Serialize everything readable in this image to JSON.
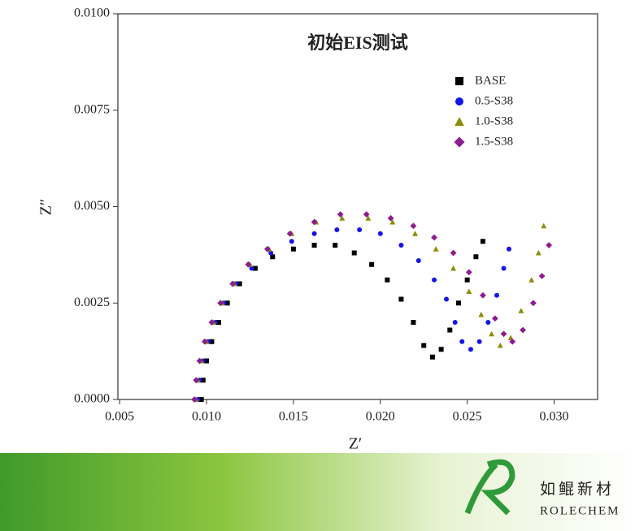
{
  "chart_data": {
    "type": "scatter",
    "title": "初始EIS测试",
    "x_label": "Z′",
    "y_label": "Z″",
    "xlim": [
      0.0049,
      0.0325
    ],
    "ylim": [
      0,
      0.01
    ],
    "xticks": [
      0.005,
      {
        "value": 0.01,
        "label": "0.010"
      },
      0.015,
      {
        "value": 0.02,
        "label": "0.020"
      },
      0.025,
      {
        "value": 0.03,
        "label": "0.030"
      }
    ],
    "yticks": [
      {
        "value": 0,
        "label": "0.0000"
      },
      0.0025,
      {
        "value": 0.005,
        "label": "0.0050"
      },
      0.0075,
      {
        "value": 0.01,
        "label": "0.0100"
      }
    ],
    "legend": "upper-right",
    "series": [
      {
        "name": "BASE",
        "color": "#000000",
        "marker": "square",
        "x": [
          0.0097,
          0.0098,
          0.01,
          0.0103,
          0.0107,
          0.0112,
          0.0119,
          0.0128,
          0.0138,
          0.015,
          0.0162,
          0.0174,
          0.0185,
          0.0195,
          0.0204,
          0.0212,
          0.0219,
          0.0225,
          0.023,
          0.0235,
          0.024,
          0.0245,
          0.025,
          0.0255,
          0.0259
        ],
        "values": [
          0.0,
          0.0005,
          0.001,
          0.0015,
          0.002,
          0.0025,
          0.003,
          0.0034,
          0.0037,
          0.0039,
          0.004,
          0.004,
          0.0038,
          0.0035,
          0.0031,
          0.0026,
          0.002,
          0.0014,
          0.0011,
          0.0013,
          0.0018,
          0.0025,
          0.0031,
          0.0037,
          0.0041
        ]
      },
      {
        "name": "0.5-S38",
        "color": "#1414e6",
        "marker": "circle",
        "x": [
          0.0095,
          0.0096,
          0.0098,
          0.0101,
          0.0105,
          0.011,
          0.0117,
          0.0126,
          0.0137,
          0.0149,
          0.0162,
          0.0175,
          0.0188,
          0.02,
          0.0212,
          0.0222,
          0.0231,
          0.0238,
          0.0243,
          0.0247,
          0.0252,
          0.0257,
          0.0262,
          0.0267,
          0.0271,
          0.0274
        ],
        "values": [
          0.0,
          0.0005,
          0.001,
          0.0015,
          0.002,
          0.0025,
          0.003,
          0.0034,
          0.0038,
          0.0041,
          0.0043,
          0.0044,
          0.0044,
          0.0043,
          0.004,
          0.0036,
          0.0031,
          0.0026,
          0.002,
          0.0015,
          0.0013,
          0.0015,
          0.002,
          0.0027,
          0.0034,
          0.0039
        ]
      },
      {
        "name": "1.0-S38",
        "color": "#8c8c0a",
        "marker": "triangle",
        "x": [
          0.0094,
          0.0095,
          0.0097,
          0.01,
          0.0104,
          0.0109,
          0.0116,
          0.0125,
          0.0136,
          0.0149,
          0.0163,
          0.0178,
          0.0193,
          0.0207,
          0.022,
          0.0232,
          0.0242,
          0.0251,
          0.0258,
          0.0264,
          0.0269,
          0.0275,
          0.0281,
          0.0287,
          0.0291,
          0.0294
        ],
        "values": [
          0.0,
          0.0005,
          0.001,
          0.0015,
          0.002,
          0.0025,
          0.003,
          0.0035,
          0.0039,
          0.0043,
          0.0046,
          0.0047,
          0.0047,
          0.0046,
          0.0043,
          0.0039,
          0.0034,
          0.0028,
          0.0022,
          0.0017,
          0.0014,
          0.0016,
          0.0023,
          0.0031,
          0.0038,
          0.0045
        ]
      },
      {
        "name": "1.5-S38",
        "color": "#8e1c8e",
        "marker": "diamond",
        "x": [
          0.0093,
          0.0094,
          0.0096,
          0.0099,
          0.0103,
          0.0108,
          0.0115,
          0.0124,
          0.0135,
          0.0148,
          0.0162,
          0.0177,
          0.0192,
          0.0206,
          0.0219,
          0.0231,
          0.0242,
          0.0251,
          0.0259,
          0.0266,
          0.0271,
          0.0276,
          0.0282,
          0.0288,
          0.0293,
          0.0297
        ],
        "values": [
          0.0,
          0.0005,
          0.001,
          0.0015,
          0.002,
          0.0025,
          0.003,
          0.0035,
          0.0039,
          0.0043,
          0.0046,
          0.0048,
          0.0048,
          0.0047,
          0.0045,
          0.0042,
          0.0038,
          0.0033,
          0.0027,
          0.0021,
          0.0017,
          0.0015,
          0.0018,
          0.0025,
          0.0032,
          0.004
        ]
      }
    ]
  },
  "logo": {
    "name": "如鲲新材",
    "latin": "ROLECHEM"
  }
}
